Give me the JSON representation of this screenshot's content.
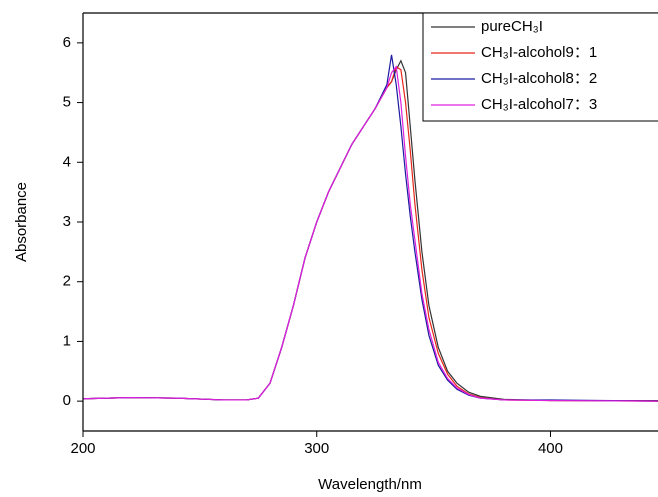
{
  "chart_data": {
    "type": "line",
    "xlabel": "Wavelength/nm",
    "ylabel": "Absorbance",
    "x": [
      200,
      220,
      240,
      260,
      270,
      275,
      280,
      285,
      290,
      295,
      300,
      305,
      310,
      315,
      320,
      325,
      330,
      332,
      334,
      336,
      338,
      340,
      342,
      345,
      348,
      352,
      356,
      360,
      365,
      370,
      380,
      400,
      446
    ],
    "series": [
      {
        "name": "pureCH₃I",
        "color": "#333333",
        "values": [
          0.04,
          0.06,
          0.05,
          0.02,
          0.02,
          0.05,
          0.3,
          0.9,
          1.6,
          2.4,
          3.0,
          3.5,
          3.9,
          4.3,
          4.6,
          4.9,
          5.25,
          5.35,
          5.55,
          5.7,
          5.5,
          4.6,
          3.7,
          2.5,
          1.6,
          0.9,
          0.5,
          0.3,
          0.15,
          0.08,
          0.03,
          0.01,
          0.01
        ]
      },
      {
        "name": "CH₃I-alcohol9：1",
        "color": "#e8261a",
        "values": [
          0.04,
          0.06,
          0.05,
          0.02,
          0.02,
          0.05,
          0.3,
          0.9,
          1.6,
          2.4,
          3.0,
          3.5,
          3.9,
          4.3,
          4.6,
          4.9,
          5.25,
          5.35,
          5.6,
          5.55,
          5.0,
          4.2,
          3.3,
          2.2,
          1.4,
          0.8,
          0.45,
          0.25,
          0.12,
          0.06,
          0.02,
          0.01,
          0
        ]
      },
      {
        "name": "CH₃I-alcohol8：2",
        "color": "#1a1aa0",
        "values": [
          0.04,
          0.06,
          0.05,
          0.02,
          0.02,
          0.05,
          0.3,
          0.9,
          1.6,
          2.4,
          3.0,
          3.5,
          3.9,
          4.3,
          4.6,
          4.9,
          5.3,
          5.8,
          5.3,
          4.6,
          3.8,
          3.1,
          2.5,
          1.7,
          1.1,
          0.6,
          0.35,
          0.2,
          0.1,
          0.05,
          0.02,
          0.02,
          0
        ]
      },
      {
        "name": "CH₃I-alcohol7：3",
        "color": "#e020e0",
        "values": [
          0.04,
          0.06,
          0.05,
          0.02,
          0.02,
          0.05,
          0.3,
          0.9,
          1.6,
          2.4,
          3.0,
          3.5,
          3.9,
          4.3,
          4.6,
          4.9,
          5.25,
          5.5,
          5.6,
          5.0,
          4.1,
          3.3,
          2.7,
          1.8,
          1.2,
          0.65,
          0.38,
          0.22,
          0.11,
          0.05,
          0.02,
          0.01,
          0
        ]
      }
    ],
    "xlim": [
      200,
      446
    ],
    "xticks": [
      200,
      300,
      400
    ],
    "ylim": [
      -0.5,
      6.5
    ],
    "yticks": [
      0,
      1,
      2,
      3,
      4,
      5,
      6
    ],
    "legend": "upper right"
  }
}
